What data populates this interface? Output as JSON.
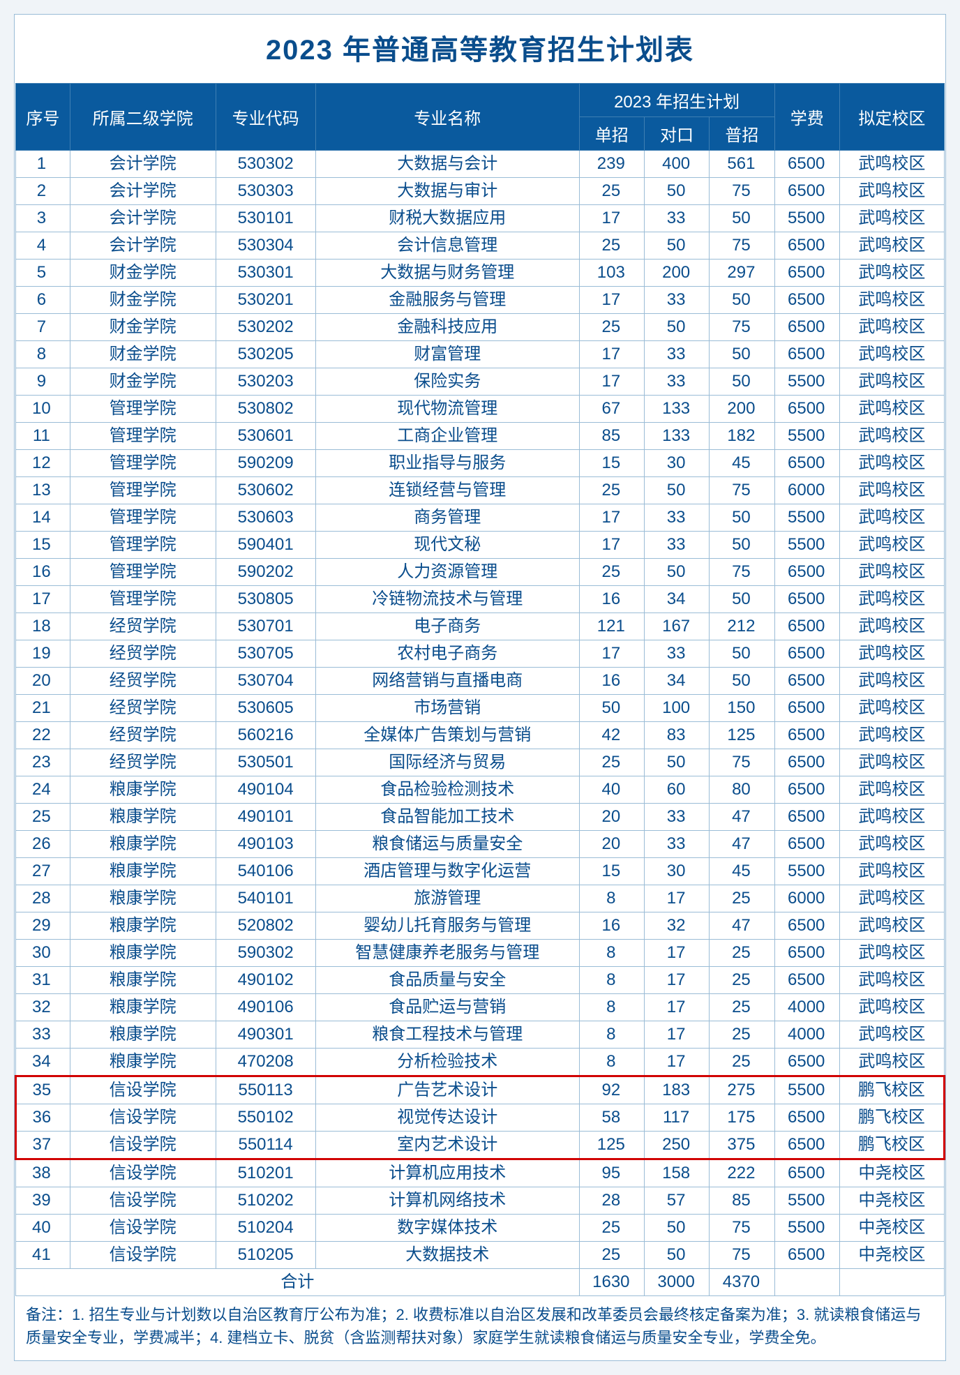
{
  "title": "2023 年普通高等教育招生计划表",
  "headers": {
    "seq": "序号",
    "college": "所属二级学院",
    "code": "专业代码",
    "major": "专业名称",
    "plan_group": "2023 年招生计划",
    "plan_single": "单招",
    "plan_counter": "对口",
    "plan_general": "普招",
    "fee": "学费",
    "campus": "拟定校区"
  },
  "rows": [
    {
      "seq": "1",
      "college": "会计学院",
      "code": "530302",
      "major": "大数据与会计",
      "p1": "239",
      "p2": "400",
      "p3": "561",
      "fee": "6500",
      "campus": "武鸣校区",
      "hl": false
    },
    {
      "seq": "2",
      "college": "会计学院",
      "code": "530303",
      "major": "大数据与审计",
      "p1": "25",
      "p2": "50",
      "p3": "75",
      "fee": "6500",
      "campus": "武鸣校区",
      "hl": false
    },
    {
      "seq": "3",
      "college": "会计学院",
      "code": "530101",
      "major": "财税大数据应用",
      "p1": "17",
      "p2": "33",
      "p3": "50",
      "fee": "5500",
      "campus": "武鸣校区",
      "hl": false
    },
    {
      "seq": "4",
      "college": "会计学院",
      "code": "530304",
      "major": "会计信息管理",
      "p1": "25",
      "p2": "50",
      "p3": "75",
      "fee": "6500",
      "campus": "武鸣校区",
      "hl": false
    },
    {
      "seq": "5",
      "college": "财金学院",
      "code": "530301",
      "major": "大数据与财务管理",
      "p1": "103",
      "p2": "200",
      "p3": "297",
      "fee": "6500",
      "campus": "武鸣校区",
      "hl": false
    },
    {
      "seq": "6",
      "college": "财金学院",
      "code": "530201",
      "major": "金融服务与管理",
      "p1": "17",
      "p2": "33",
      "p3": "50",
      "fee": "6500",
      "campus": "武鸣校区",
      "hl": false
    },
    {
      "seq": "7",
      "college": "财金学院",
      "code": "530202",
      "major": "金融科技应用",
      "p1": "25",
      "p2": "50",
      "p3": "75",
      "fee": "6500",
      "campus": "武鸣校区",
      "hl": false
    },
    {
      "seq": "8",
      "college": "财金学院",
      "code": "530205",
      "major": "财富管理",
      "p1": "17",
      "p2": "33",
      "p3": "50",
      "fee": "6500",
      "campus": "武鸣校区",
      "hl": false
    },
    {
      "seq": "9",
      "college": "财金学院",
      "code": "530203",
      "major": "保险实务",
      "p1": "17",
      "p2": "33",
      "p3": "50",
      "fee": "5500",
      "campus": "武鸣校区",
      "hl": false
    },
    {
      "seq": "10",
      "college": "管理学院",
      "code": "530802",
      "major": "现代物流管理",
      "p1": "67",
      "p2": "133",
      "p3": "200",
      "fee": "6500",
      "campus": "武鸣校区",
      "hl": false
    },
    {
      "seq": "11",
      "college": "管理学院",
      "code": "530601",
      "major": "工商企业管理",
      "p1": "85",
      "p2": "133",
      "p3": "182",
      "fee": "5500",
      "campus": "武鸣校区",
      "hl": false
    },
    {
      "seq": "12",
      "college": "管理学院",
      "code": "590209",
      "major": "职业指导与服务",
      "p1": "15",
      "p2": "30",
      "p3": "45",
      "fee": "6500",
      "campus": "武鸣校区",
      "hl": false
    },
    {
      "seq": "13",
      "college": "管理学院",
      "code": "530602",
      "major": "连锁经营与管理",
      "p1": "25",
      "p2": "50",
      "p3": "75",
      "fee": "6000",
      "campus": "武鸣校区",
      "hl": false
    },
    {
      "seq": "14",
      "college": "管理学院",
      "code": "530603",
      "major": "商务管理",
      "p1": "17",
      "p2": "33",
      "p3": "50",
      "fee": "5500",
      "campus": "武鸣校区",
      "hl": false
    },
    {
      "seq": "15",
      "college": "管理学院",
      "code": "590401",
      "major": "现代文秘",
      "p1": "17",
      "p2": "33",
      "p3": "50",
      "fee": "5500",
      "campus": "武鸣校区",
      "hl": false
    },
    {
      "seq": "16",
      "college": "管理学院",
      "code": "590202",
      "major": "人力资源管理",
      "p1": "25",
      "p2": "50",
      "p3": "75",
      "fee": "6500",
      "campus": "武鸣校区",
      "hl": false
    },
    {
      "seq": "17",
      "college": "管理学院",
      "code": "530805",
      "major": "冷链物流技术与管理",
      "p1": "16",
      "p2": "34",
      "p3": "50",
      "fee": "6500",
      "campus": "武鸣校区",
      "hl": false
    },
    {
      "seq": "18",
      "college": "经贸学院",
      "code": "530701",
      "major": "电子商务",
      "p1": "121",
      "p2": "167",
      "p3": "212",
      "fee": "6500",
      "campus": "武鸣校区",
      "hl": false
    },
    {
      "seq": "19",
      "college": "经贸学院",
      "code": "530705",
      "major": "农村电子商务",
      "p1": "17",
      "p2": "33",
      "p3": "50",
      "fee": "6500",
      "campus": "武鸣校区",
      "hl": false
    },
    {
      "seq": "20",
      "college": "经贸学院",
      "code": "530704",
      "major": "网络营销与直播电商",
      "p1": "16",
      "p2": "34",
      "p3": "50",
      "fee": "6500",
      "campus": "武鸣校区",
      "hl": false
    },
    {
      "seq": "21",
      "college": "经贸学院",
      "code": "530605",
      "major": "市场营销",
      "p1": "50",
      "p2": "100",
      "p3": "150",
      "fee": "6500",
      "campus": "武鸣校区",
      "hl": false
    },
    {
      "seq": "22",
      "college": "经贸学院",
      "code": "560216",
      "major": "全媒体广告策划与营销",
      "p1": "42",
      "p2": "83",
      "p3": "125",
      "fee": "6500",
      "campus": "武鸣校区",
      "hl": false
    },
    {
      "seq": "23",
      "college": "经贸学院",
      "code": "530501",
      "major": "国际经济与贸易",
      "p1": "25",
      "p2": "50",
      "p3": "75",
      "fee": "6500",
      "campus": "武鸣校区",
      "hl": false
    },
    {
      "seq": "24",
      "college": "粮康学院",
      "code": "490104",
      "major": "食品检验检测技术",
      "p1": "40",
      "p2": "60",
      "p3": "80",
      "fee": "6500",
      "campus": "武鸣校区",
      "hl": false
    },
    {
      "seq": "25",
      "college": "粮康学院",
      "code": "490101",
      "major": "食品智能加工技术",
      "p1": "20",
      "p2": "33",
      "p3": "47",
      "fee": "6500",
      "campus": "武鸣校区",
      "hl": false
    },
    {
      "seq": "26",
      "college": "粮康学院",
      "code": "490103",
      "major": "粮食储运与质量安全",
      "p1": "20",
      "p2": "33",
      "p3": "47",
      "fee": "6500",
      "campus": "武鸣校区",
      "hl": false
    },
    {
      "seq": "27",
      "college": "粮康学院",
      "code": "540106",
      "major": "酒店管理与数字化运营",
      "p1": "15",
      "p2": "30",
      "p3": "45",
      "fee": "5500",
      "campus": "武鸣校区",
      "hl": false
    },
    {
      "seq": "28",
      "college": "粮康学院",
      "code": "540101",
      "major": "旅游管理",
      "p1": "8",
      "p2": "17",
      "p3": "25",
      "fee": "6000",
      "campus": "武鸣校区",
      "hl": false
    },
    {
      "seq": "29",
      "college": "粮康学院",
      "code": "520802",
      "major": "婴幼儿托育服务与管理",
      "p1": "16",
      "p2": "32",
      "p3": "47",
      "fee": "6500",
      "campus": "武鸣校区",
      "hl": false
    },
    {
      "seq": "30",
      "college": "粮康学院",
      "code": "590302",
      "major": "智慧健康养老服务与管理",
      "p1": "8",
      "p2": "17",
      "p3": "25",
      "fee": "6500",
      "campus": "武鸣校区",
      "hl": false
    },
    {
      "seq": "31",
      "college": "粮康学院",
      "code": "490102",
      "major": "食品质量与安全",
      "p1": "8",
      "p2": "17",
      "p3": "25",
      "fee": "6500",
      "campus": "武鸣校区",
      "hl": false
    },
    {
      "seq": "32",
      "college": "粮康学院",
      "code": "490106",
      "major": "食品贮运与营销",
      "p1": "8",
      "p2": "17",
      "p3": "25",
      "fee": "4000",
      "campus": "武鸣校区",
      "hl": false
    },
    {
      "seq": "33",
      "college": "粮康学院",
      "code": "490301",
      "major": "粮食工程技术与管理",
      "p1": "8",
      "p2": "17",
      "p3": "25",
      "fee": "4000",
      "campus": "武鸣校区",
      "hl": false
    },
    {
      "seq": "34",
      "college": "粮康学院",
      "code": "470208",
      "major": "分析检验技术",
      "p1": "8",
      "p2": "17",
      "p3": "25",
      "fee": "6500",
      "campus": "武鸣校区",
      "hl": false
    },
    {
      "seq": "35",
      "college": "信设学院",
      "code": "550113",
      "major": "广告艺术设计",
      "p1": "92",
      "p2": "183",
      "p3": "275",
      "fee": "5500",
      "campus": "鹏飞校区",
      "hl": true,
      "hlTop": true
    },
    {
      "seq": "36",
      "college": "信设学院",
      "code": "550102",
      "major": "视觉传达设计",
      "p1": "58",
      "p2": "117",
      "p3": "175",
      "fee": "6500",
      "campus": "鹏飞校区",
      "hl": true
    },
    {
      "seq": "37",
      "college": "信设学院",
      "code": "550114",
      "major": "室内艺术设计",
      "p1": "125",
      "p2": "250",
      "p3": "375",
      "fee": "6500",
      "campus": "鹏飞校区",
      "hl": true,
      "hlBottom": true
    },
    {
      "seq": "38",
      "college": "信设学院",
      "code": "510201",
      "major": "计算机应用技术",
      "p1": "95",
      "p2": "158",
      "p3": "222",
      "fee": "6500",
      "campus": "中尧校区",
      "hl": false
    },
    {
      "seq": "39",
      "college": "信设学院",
      "code": "510202",
      "major": "计算机网络技术",
      "p1": "28",
      "p2": "57",
      "p3": "85",
      "fee": "5500",
      "campus": "中尧校区",
      "hl": false
    },
    {
      "seq": "40",
      "college": "信设学院",
      "code": "510204",
      "major": "数字媒体技术",
      "p1": "25",
      "p2": "50",
      "p3": "75",
      "fee": "5500",
      "campus": "中尧校区",
      "hl": false
    },
    {
      "seq": "41",
      "college": "信设学院",
      "code": "510205",
      "major": "大数据技术",
      "p1": "25",
      "p2": "50",
      "p3": "75",
      "fee": "6500",
      "campus": "中尧校区",
      "hl": false
    }
  ],
  "total": {
    "label": "合计",
    "p1": "1630",
    "p2": "3000",
    "p3": "4370"
  },
  "notes": "备注：1. 招生专业与计划数以自治区教育厅公布为准；2. 收费标准以自治区发展和改革委员会最终核定备案为准；3. 就读粮食储运与质量安全专业，学费减半；4. 建档立卡、脱贫（含监测帮扶对象）家庭学生就读粮食储运与质量安全专业，学费全免。",
  "styling": {
    "title_color": "#0a4d8c",
    "header_bg": "#0a5a9e",
    "header_fg": "#ffffff",
    "border_color": "#9abcd6",
    "text_color": "#0a4d8c",
    "highlight_color": "#d10000",
    "background": "#ffffff",
    "font_size_title": 40,
    "font_size_cell": 24,
    "font_size_notes": 22
  }
}
